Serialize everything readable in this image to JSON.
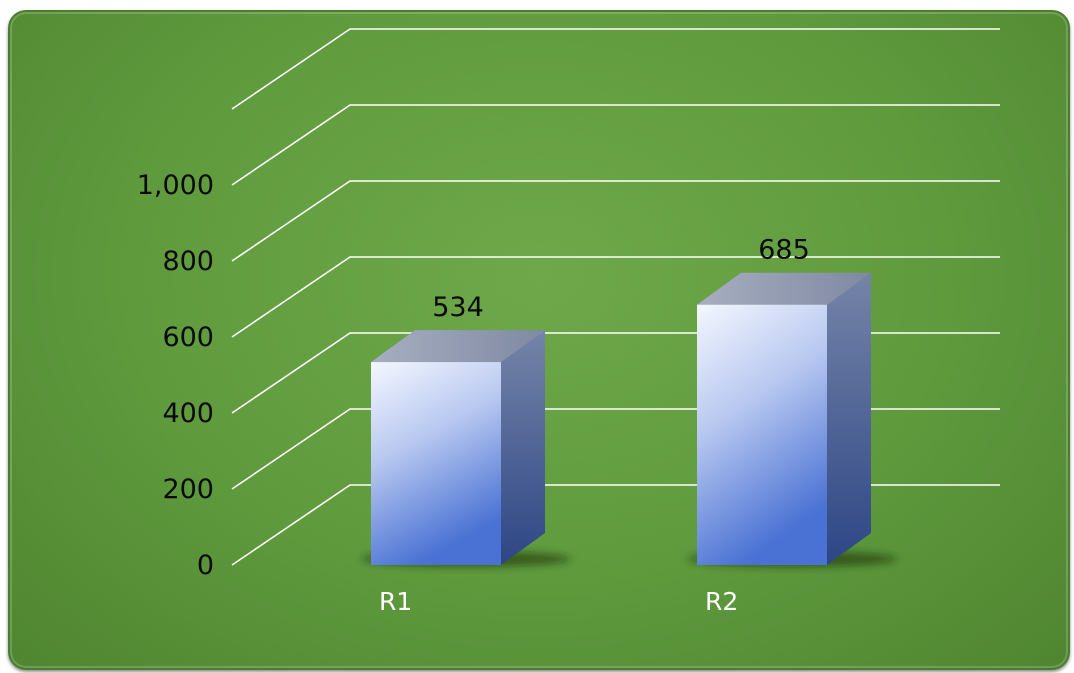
{
  "chart_data": {
    "type": "bar",
    "style": "3d-column",
    "categories": [
      "R1",
      "R2"
    ],
    "values": [
      534,
      685
    ],
    "y_ticks": [
      "0",
      "200",
      "400",
      "600",
      "800",
      "1,000"
    ],
    "data_labels": [
      "534",
      "685"
    ],
    "ylim": [
      0,
      1200
    ],
    "grid": true,
    "legend": "none",
    "colors": {
      "background": "#62a040",
      "gridline": "#ffffff",
      "bar_front_light": "#f2f6ff",
      "bar_front_dark": "#4a72d4",
      "bar_side": "#34508f",
      "bar_top": "#9aa2b8",
      "category_label": "#ffffff",
      "value_label": "#0a0a0a"
    }
  }
}
